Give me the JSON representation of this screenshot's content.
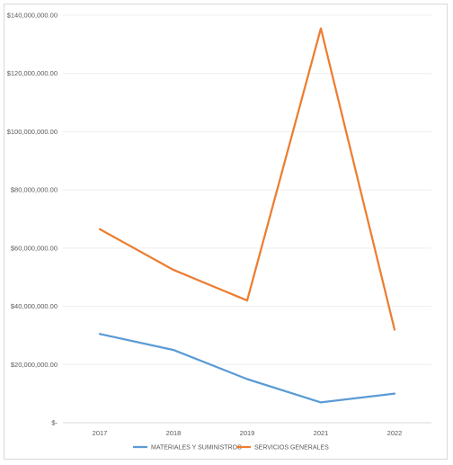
{
  "chart_data": {
    "type": "line",
    "categories": [
      "2017",
      "2018",
      "2019",
      "2021",
      "2022"
    ],
    "series": [
      {
        "name": "MATERIALES Y SUMINISTROS",
        "color": "#5b9bd5",
        "values": [
          30500000,
          25000000,
          15000000,
          7000000,
          10000000
        ]
      },
      {
        "name": "SERVICIOS GENERALES",
        "color": "#ed7d31",
        "values": [
          66500000,
          52500000,
          42000000,
          135500000,
          32000000
        ]
      }
    ],
    "y_ticks": [
      {
        "value": 0,
        "label": "$-"
      },
      {
        "value": 20000000,
        "label": "$20,000,000.00"
      },
      {
        "value": 40000000,
        "label": "$40,000,000.00"
      },
      {
        "value": 60000000,
        "label": "$60,000,000.00"
      },
      {
        "value": 80000000,
        "label": "$80,000,000.00"
      },
      {
        "value": 100000000,
        "label": "$100,000,000.00"
      },
      {
        "value": 120000000,
        "label": "$120,000,000.00"
      },
      {
        "value": 140000000,
        "label": "$140,000,000.00"
      }
    ],
    "ylim": [
      0,
      140000000
    ],
    "grid": true,
    "legend_position": "bottom",
    "title": "",
    "xlabel": "",
    "ylabel": ""
  }
}
